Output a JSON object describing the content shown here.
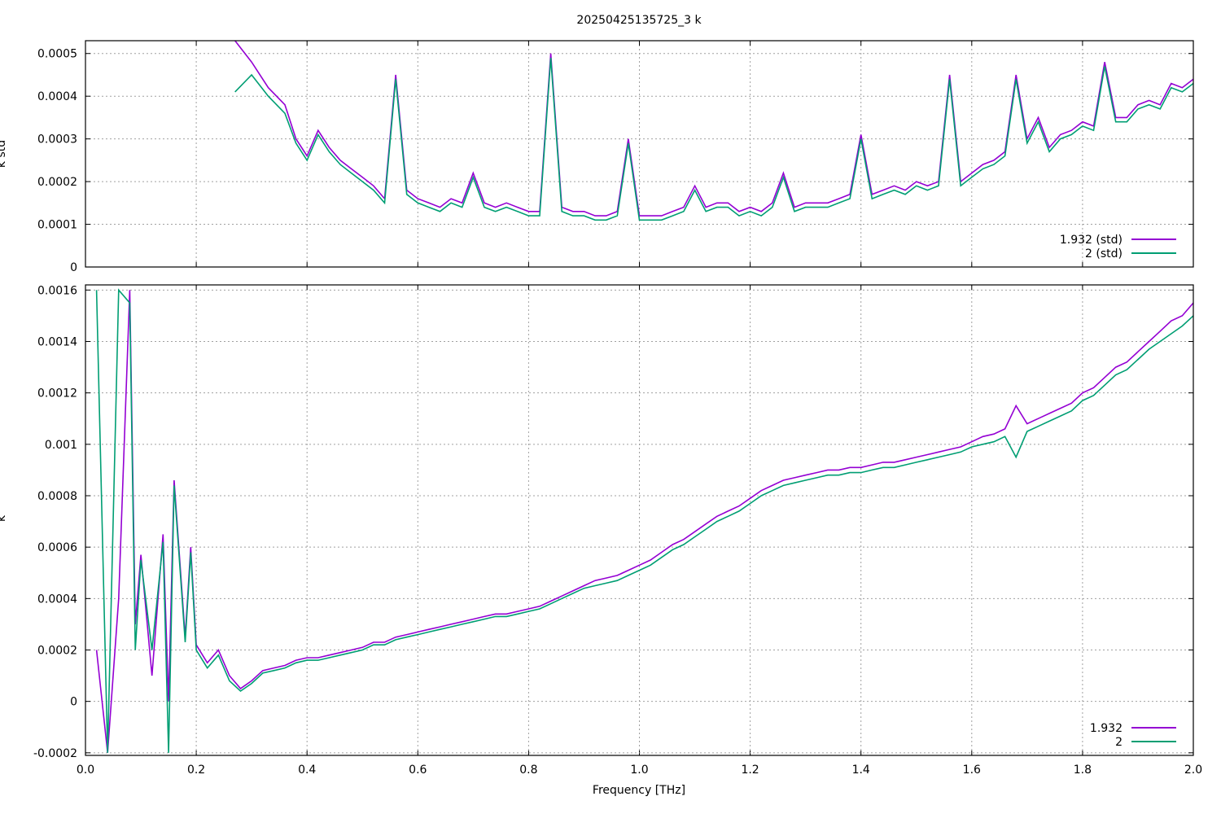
{
  "figure": {
    "title": "20250425135725_3 k",
    "xlabel": "Frequency [THz]"
  },
  "colors": {
    "series_a": "#9400d3",
    "series_b": "#009e73"
  },
  "chart_data": [
    {
      "type": "line",
      "ylabel": "k std",
      "xlim": [
        0,
        2.0
      ],
      "ylim": [
        0,
        0.00053
      ],
      "xticks": [
        0,
        0.2,
        0.4,
        0.6,
        0.8,
        1.0,
        1.2,
        1.4,
        1.6,
        1.8,
        2.0
      ],
      "yticks": [
        0,
        0.0001,
        0.0002,
        0.0003,
        0.0004,
        0.0005
      ],
      "ytick_labels": [
        "0",
        "0.0001",
        "0.0002",
        "0.0003",
        "0.0004",
        "0.0005"
      ],
      "grid": true,
      "legend_position": "bottom-right",
      "series": [
        {
          "name": "1.932 (std)",
          "x": [
            0.27,
            0.3,
            0.33,
            0.36,
            0.38,
            0.4,
            0.42,
            0.44,
            0.46,
            0.48,
            0.5,
            0.52,
            0.54,
            0.56,
            0.58,
            0.6,
            0.62,
            0.64,
            0.66,
            0.68,
            0.7,
            0.72,
            0.74,
            0.76,
            0.78,
            0.8,
            0.82,
            0.84,
            0.86,
            0.88,
            0.9,
            0.92,
            0.94,
            0.96,
            0.98,
            1.0,
            1.02,
            1.04,
            1.06,
            1.08,
            1.1,
            1.12,
            1.14,
            1.16,
            1.18,
            1.2,
            1.22,
            1.24,
            1.26,
            1.28,
            1.3,
            1.32,
            1.34,
            1.36,
            1.38,
            1.4,
            1.42,
            1.44,
            1.46,
            1.48,
            1.5,
            1.52,
            1.54,
            1.56,
            1.58,
            1.6,
            1.62,
            1.64,
            1.66,
            1.68,
            1.7,
            1.72,
            1.74,
            1.76,
            1.78,
            1.8,
            1.82,
            1.84,
            1.86,
            1.88,
            1.9,
            1.92,
            1.94,
            1.96,
            1.98,
            2.0
          ],
          "y": [
            0.00053,
            0.00048,
            0.00042,
            0.00038,
            0.0003,
            0.00026,
            0.00032,
            0.00028,
            0.00025,
            0.00023,
            0.00021,
            0.00019,
            0.00016,
            0.00045,
            0.00018,
            0.00016,
            0.00015,
            0.00014,
            0.00016,
            0.00015,
            0.00022,
            0.00015,
            0.00014,
            0.00015,
            0.00014,
            0.00013,
            0.00013,
            0.0005,
            0.00014,
            0.00013,
            0.00013,
            0.00012,
            0.00012,
            0.00013,
            0.0003,
            0.00012,
            0.00012,
            0.00012,
            0.00013,
            0.00014,
            0.00019,
            0.00014,
            0.00015,
            0.00015,
            0.00013,
            0.00014,
            0.00013,
            0.00015,
            0.00022,
            0.00014,
            0.00015,
            0.00015,
            0.00015,
            0.00016,
            0.00017,
            0.00031,
            0.00017,
            0.00018,
            0.00019,
            0.00018,
            0.0002,
            0.00019,
            0.0002,
            0.00045,
            0.0002,
            0.00022,
            0.00024,
            0.00025,
            0.00027,
            0.00045,
            0.0003,
            0.00035,
            0.00028,
            0.00031,
            0.00032,
            0.00034,
            0.00033,
            0.00048,
            0.00035,
            0.00035,
            0.00038,
            0.00039,
            0.00038,
            0.00043,
            0.00042,
            0.00044
          ]
        },
        {
          "name": "2 (std)",
          "x": [
            0.27,
            0.3,
            0.33,
            0.36,
            0.38,
            0.4,
            0.42,
            0.44,
            0.46,
            0.48,
            0.5,
            0.52,
            0.54,
            0.56,
            0.58,
            0.6,
            0.62,
            0.64,
            0.66,
            0.68,
            0.7,
            0.72,
            0.74,
            0.76,
            0.78,
            0.8,
            0.82,
            0.84,
            0.86,
            0.88,
            0.9,
            0.92,
            0.94,
            0.96,
            0.98,
            1.0,
            1.02,
            1.04,
            1.06,
            1.08,
            1.1,
            1.12,
            1.14,
            1.16,
            1.18,
            1.2,
            1.22,
            1.24,
            1.26,
            1.28,
            1.3,
            1.32,
            1.34,
            1.36,
            1.38,
            1.4,
            1.42,
            1.44,
            1.46,
            1.48,
            1.5,
            1.52,
            1.54,
            1.56,
            1.58,
            1.6,
            1.62,
            1.64,
            1.66,
            1.68,
            1.7,
            1.72,
            1.74,
            1.76,
            1.78,
            1.8,
            1.82,
            1.84,
            1.86,
            1.88,
            1.9,
            1.92,
            1.94,
            1.96,
            1.98,
            2.0
          ],
          "y": [
            0.00041,
            0.00045,
            0.0004,
            0.00036,
            0.00029,
            0.00025,
            0.00031,
            0.00027,
            0.00024,
            0.00022,
            0.0002,
            0.00018,
            0.00015,
            0.00044,
            0.00017,
            0.00015,
            0.00014,
            0.00013,
            0.00015,
            0.00014,
            0.00021,
            0.00014,
            0.00013,
            0.00014,
            0.00013,
            0.00012,
            0.00012,
            0.00049,
            0.00013,
            0.00012,
            0.00012,
            0.00011,
            0.00011,
            0.00012,
            0.00029,
            0.00011,
            0.00011,
            0.00011,
            0.00012,
            0.00013,
            0.00018,
            0.00013,
            0.00014,
            0.00014,
            0.00012,
            0.00013,
            0.00012,
            0.00014,
            0.00021,
            0.00013,
            0.00014,
            0.00014,
            0.00014,
            0.00015,
            0.00016,
            0.0003,
            0.00016,
            0.00017,
            0.00018,
            0.00017,
            0.00019,
            0.00018,
            0.00019,
            0.00044,
            0.00019,
            0.00021,
            0.00023,
            0.00024,
            0.00026,
            0.00044,
            0.00029,
            0.00034,
            0.00027,
            0.0003,
            0.00031,
            0.00033,
            0.00032,
            0.00047,
            0.00034,
            0.00034,
            0.00037,
            0.00038,
            0.00037,
            0.00042,
            0.00041,
            0.00043
          ]
        }
      ]
    },
    {
      "type": "line",
      "ylabel": "k",
      "xlim": [
        0,
        2.0
      ],
      "ylim": [
        -0.00021,
        0.00162
      ],
      "xticks": [
        0,
        0.2,
        0.4,
        0.6,
        0.8,
        1.0,
        1.2,
        1.4,
        1.6,
        1.8,
        2.0
      ],
      "xtick_labels": [
        "0.0",
        "0.2",
        "0.4",
        "0.6",
        "0.8",
        "1.0",
        "1.2",
        "1.4",
        "1.6",
        "1.8",
        "2.0"
      ],
      "yticks": [
        -0.0002,
        0,
        0.0002,
        0.0004,
        0.0006,
        0.0008,
        0.001,
        0.0012,
        0.0014,
        0.0016
      ],
      "ytick_labels": [
        "-0.0002",
        "0",
        "0.0002",
        "0.0004",
        "0.0006",
        "0.0008",
        "0.001",
        "0.0012",
        "0.0014",
        "0.0016"
      ],
      "grid": true,
      "legend_position": "bottom-right",
      "series": [
        {
          "name": "1.932",
          "x": [
            0.02,
            0.04,
            0.06,
            0.08,
            0.09,
            0.1,
            0.12,
            0.14,
            0.15,
            0.16,
            0.18,
            0.19,
            0.2,
            0.22,
            0.24,
            0.26,
            0.28,
            0.3,
            0.32,
            0.34,
            0.36,
            0.38,
            0.4,
            0.42,
            0.44,
            0.46,
            0.48,
            0.5,
            0.52,
            0.54,
            0.56,
            0.58,
            0.6,
            0.62,
            0.64,
            0.66,
            0.68,
            0.7,
            0.72,
            0.74,
            0.76,
            0.78,
            0.8,
            0.82,
            0.84,
            0.86,
            0.88,
            0.9,
            0.92,
            0.94,
            0.96,
            0.98,
            1.0,
            1.02,
            1.04,
            1.06,
            1.08,
            1.1,
            1.12,
            1.14,
            1.16,
            1.18,
            1.2,
            1.22,
            1.24,
            1.26,
            1.28,
            1.3,
            1.32,
            1.34,
            1.36,
            1.38,
            1.4,
            1.42,
            1.44,
            1.46,
            1.48,
            1.5,
            1.52,
            1.54,
            1.56,
            1.58,
            1.6,
            1.62,
            1.64,
            1.66,
            1.68,
            1.7,
            1.72,
            1.74,
            1.76,
            1.78,
            1.8,
            1.82,
            1.84,
            1.86,
            1.88,
            1.9,
            1.92,
            1.94,
            1.96,
            1.98,
            2.0
          ],
          "y": [
            0.0002,
            -0.0002,
            0.0004,
            0.0016,
            0.0003,
            0.00057,
            0.0001,
            0.00065,
            0.0,
            0.00086,
            0.00025,
            0.0006,
            0.00022,
            0.00015,
            0.0002,
            0.0001,
            5e-05,
            8e-05,
            0.00012,
            0.00013,
            0.00014,
            0.00016,
            0.00017,
            0.00017,
            0.00018,
            0.00019,
            0.0002,
            0.00021,
            0.00023,
            0.00023,
            0.00025,
            0.00026,
            0.00027,
            0.00028,
            0.00029,
            0.0003,
            0.00031,
            0.00032,
            0.00033,
            0.00034,
            0.00034,
            0.00035,
            0.00036,
            0.00037,
            0.00039,
            0.00041,
            0.00043,
            0.00045,
            0.00047,
            0.00048,
            0.00049,
            0.00051,
            0.00053,
            0.00055,
            0.00058,
            0.00061,
            0.00063,
            0.00066,
            0.00069,
            0.00072,
            0.00074,
            0.00076,
            0.00079,
            0.00082,
            0.00084,
            0.00086,
            0.00087,
            0.00088,
            0.00089,
            0.0009,
            0.0009,
            0.00091,
            0.00091,
            0.00092,
            0.00093,
            0.00093,
            0.00094,
            0.00095,
            0.00096,
            0.00097,
            0.00098,
            0.00099,
            0.00101,
            0.00103,
            0.00104,
            0.00106,
            0.00115,
            0.00108,
            0.0011,
            0.00112,
            0.00114,
            0.00116,
            0.0012,
            0.00122,
            0.00126,
            0.0013,
            0.00132,
            0.00136,
            0.0014,
            0.00144,
            0.00148,
            0.0015,
            0.00155
          ]
        },
        {
          "name": "2",
          "x": [
            0.02,
            0.04,
            0.06,
            0.08,
            0.09,
            0.1,
            0.12,
            0.14,
            0.15,
            0.16,
            0.18,
            0.19,
            0.2,
            0.22,
            0.24,
            0.26,
            0.28,
            0.3,
            0.32,
            0.34,
            0.36,
            0.38,
            0.4,
            0.42,
            0.44,
            0.46,
            0.48,
            0.5,
            0.52,
            0.54,
            0.56,
            0.58,
            0.6,
            0.62,
            0.64,
            0.66,
            0.68,
            0.7,
            0.72,
            0.74,
            0.76,
            0.78,
            0.8,
            0.82,
            0.84,
            0.86,
            0.88,
            0.9,
            0.92,
            0.94,
            0.96,
            0.98,
            1.0,
            1.02,
            1.04,
            1.06,
            1.08,
            1.1,
            1.12,
            1.14,
            1.16,
            1.18,
            1.2,
            1.22,
            1.24,
            1.26,
            1.28,
            1.3,
            1.32,
            1.34,
            1.36,
            1.38,
            1.4,
            1.42,
            1.44,
            1.46,
            1.48,
            1.5,
            1.52,
            1.54,
            1.56,
            1.58,
            1.6,
            1.62,
            1.64,
            1.66,
            1.68,
            1.7,
            1.72,
            1.74,
            1.76,
            1.78,
            1.8,
            1.82,
            1.84,
            1.86,
            1.88,
            1.9,
            1.92,
            1.94,
            1.96,
            1.98,
            2.0
          ],
          "y": [
            0.0016,
            -0.0002,
            0.0016,
            0.00155,
            0.0002,
            0.00055,
            0.0002,
            0.00062,
            -0.0002,
            0.00084,
            0.00023,
            0.00058,
            0.0002,
            0.00013,
            0.00018,
            8e-05,
            4e-05,
            7e-05,
            0.00011,
            0.00012,
            0.00013,
            0.00015,
            0.00016,
            0.00016,
            0.00017,
            0.00018,
            0.00019,
            0.0002,
            0.00022,
            0.00022,
            0.00024,
            0.00025,
            0.00026,
            0.00027,
            0.00028,
            0.00029,
            0.0003,
            0.00031,
            0.00032,
            0.00033,
            0.00033,
            0.00034,
            0.00035,
            0.00036,
            0.00038,
            0.0004,
            0.00042,
            0.00044,
            0.00045,
            0.00046,
            0.00047,
            0.00049,
            0.00051,
            0.00053,
            0.00056,
            0.00059,
            0.00061,
            0.00064,
            0.00067,
            0.0007,
            0.00072,
            0.00074,
            0.00077,
            0.0008,
            0.00082,
            0.00084,
            0.00085,
            0.00086,
            0.00087,
            0.00088,
            0.00088,
            0.00089,
            0.00089,
            0.0009,
            0.00091,
            0.00091,
            0.00092,
            0.00093,
            0.00094,
            0.00095,
            0.00096,
            0.00097,
            0.00099,
            0.001,
            0.00101,
            0.00103,
            0.00095,
            0.00105,
            0.00107,
            0.00109,
            0.00111,
            0.00113,
            0.00117,
            0.00119,
            0.00123,
            0.00127,
            0.00129,
            0.00133,
            0.00137,
            0.0014,
            0.00143,
            0.00146,
            0.0015
          ]
        }
      ]
    }
  ]
}
